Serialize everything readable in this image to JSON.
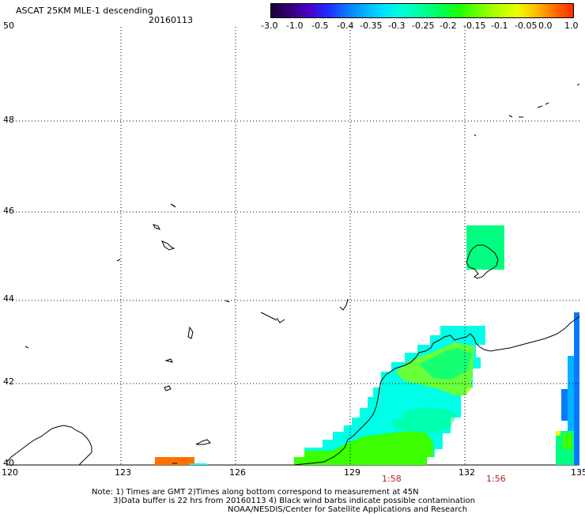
{
  "header": {
    "title": "ASCAT 25KM MLE-1 descending",
    "date": "20160113"
  },
  "colorbar": {
    "ticks": [
      "-3.0",
      "-1.0",
      "-0.5",
      "-0.4",
      "-0.35",
      "-0.3",
      "-0.25",
      "-0.2",
      "-0.15",
      "-0.1",
      "-0.05",
      "0.0",
      "1.0"
    ],
    "colors": [
      "#1a0033",
      "#35007a",
      "#4a00c8",
      "#1d2cff",
      "#0a78ff",
      "#00b4ff",
      "#00e4ff",
      "#00ffd4",
      "#00ff9a",
      "#00ff55",
      "#20ff00",
      "#70ff00",
      "#b4ff00",
      "#ecff00",
      "#ffc000",
      "#ff7000",
      "#ff2a00"
    ]
  },
  "axes": {
    "lat_labels": [
      "50",
      "48",
      "46",
      "44",
      "42",
      "40"
    ],
    "lon_labels": [
      "120",
      "123",
      "126",
      "129",
      "132",
      "135"
    ]
  },
  "pass_times": [
    "1:58",
    "1:56"
  ],
  "notes": {
    "line1": "Note: 1) Times are GMT 2)Times along bottom correspond to measurement at 45N",
    "line2": "3)Data buffer is 22 hrs from 20160113 4) Black wind barbs indicate possible contamination",
    "line3": "NOAA/NESDIS/Center for Satellite Applications and Research"
  },
  "map": {
    "grid": "dotted",
    "data_colors": {
      "cyan": "#00ffe6",
      "green": "#00ff80",
      "lime": "#3cff00",
      "yellowgreen": "#8cff00",
      "blue": "#0a78ff",
      "lightblue": "#00b4ff",
      "orange": "#ff7000",
      "coast": "#000000"
    }
  }
}
